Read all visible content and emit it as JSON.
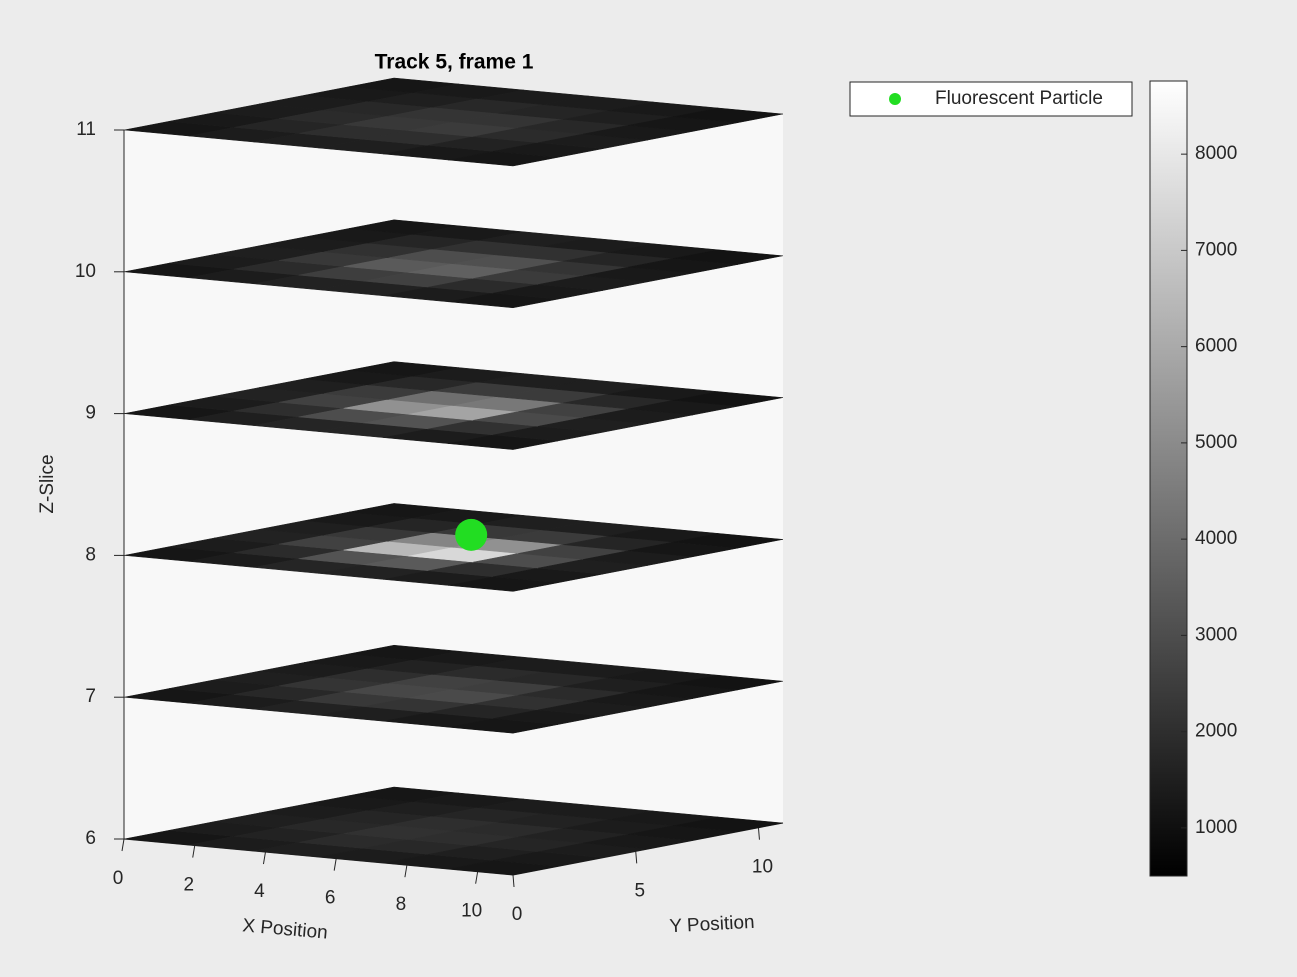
{
  "chart_data": {
    "type": "slices3d",
    "title": "Track 5, frame 1",
    "xlabel": "X Position",
    "ylabel": "Y Position",
    "zlabel": "Z-Slice",
    "xlim": [
      0,
      11
    ],
    "ylim": [
      0,
      11
    ],
    "zlim": [
      6,
      11
    ],
    "xticks": [
      0,
      2,
      4,
      6,
      8,
      10
    ],
    "yticks": [
      0,
      5,
      10
    ],
    "zticks": [
      6,
      7,
      8,
      9,
      10,
      11
    ],
    "clim": [
      500,
      8760
    ],
    "cticks": [
      1000,
      2000,
      3000,
      4000,
      5000,
      6000,
      7000,
      8000
    ],
    "slices": [
      {
        "z": 6,
        "intensity": [
          [
            1200,
            1400,
            1500,
            1400,
            1300,
            1200
          ],
          [
            1400,
            1600,
            1900,
            1800,
            1500,
            1300
          ],
          [
            1500,
            1800,
            2100,
            2000,
            1700,
            1400
          ],
          [
            1400,
            1700,
            2000,
            1900,
            1600,
            1300
          ],
          [
            1300,
            1500,
            1700,
            1600,
            1400,
            1200
          ],
          [
            1200,
            1300,
            1400,
            1400,
            1300,
            1100
          ]
        ]
      },
      {
        "z": 7,
        "intensity": [
          [
            1200,
            1400,
            1600,
            1500,
            1300,
            1200
          ],
          [
            1400,
            1800,
            2300,
            2200,
            1700,
            1300
          ],
          [
            1500,
            2200,
            2800,
            2900,
            2100,
            1400
          ],
          [
            1400,
            2000,
            2600,
            2500,
            1900,
            1300
          ],
          [
            1300,
            1600,
            1900,
            1800,
            1500,
            1200
          ],
          [
            1200,
            1300,
            1400,
            1400,
            1300,
            1100
          ]
        ]
      },
      {
        "z": 8,
        "intensity": [
          [
            1200,
            1400,
            1700,
            1600,
            1400,
            1200
          ],
          [
            1400,
            1900,
            3200,
            3400,
            2000,
            1300
          ],
          [
            1600,
            2600,
            6500,
            7500,
            3000,
            1500
          ],
          [
            1500,
            2300,
            4800,
            5200,
            2600,
            1400
          ],
          [
            1300,
            1700,
            2300,
            2400,
            1700,
            1200
          ],
          [
            1200,
            1300,
            1500,
            1500,
            1300,
            1100
          ]
        ]
      },
      {
        "z": 9,
        "intensity": [
          [
            1200,
            1500,
            1700,
            1700,
            1400,
            1200
          ],
          [
            1400,
            2000,
            3000,
            3200,
            2100,
            1400
          ],
          [
            1600,
            2600,
            5200,
            5800,
            2900,
            1500
          ],
          [
            1500,
            2400,
            4100,
            4400,
            2600,
            1400
          ],
          [
            1300,
            1800,
            2400,
            2400,
            1800,
            1300
          ],
          [
            1200,
            1400,
            1500,
            1500,
            1300,
            1100
          ]
        ]
      },
      {
        "z": 10,
        "intensity": [
          [
            1200,
            1400,
            1600,
            1600,
            1400,
            1200
          ],
          [
            1400,
            1900,
            2500,
            2600,
            1900,
            1300
          ],
          [
            1500,
            2300,
            3400,
            3600,
            2400,
            1400
          ],
          [
            1400,
            2100,
            3000,
            3100,
            2200,
            1300
          ],
          [
            1300,
            1700,
            2100,
            2100,
            1700,
            1200
          ],
          [
            1200,
            1300,
            1500,
            1400,
            1300,
            1100
          ]
        ]
      },
      {
        "z": 11,
        "intensity": [
          [
            1200,
            1400,
            1500,
            1500,
            1300,
            1200
          ],
          [
            1300,
            1700,
            2000,
            2000,
            1600,
            1300
          ],
          [
            1400,
            1900,
            2300,
            2400,
            1900,
            1400
          ],
          [
            1400,
            1800,
            2200,
            2200,
            1800,
            1300
          ],
          [
            1300,
            1500,
            1800,
            1700,
            1500,
            1200
          ],
          [
            1200,
            1300,
            1400,
            1400,
            1300,
            1100
          ]
        ]
      }
    ],
    "series": [
      {
        "name": "Fluorescent Particle",
        "color": "#22dd22",
        "x": [
          6
        ],
        "y": [
          5.5
        ],
        "z": [
          8.1
        ]
      }
    ]
  }
}
